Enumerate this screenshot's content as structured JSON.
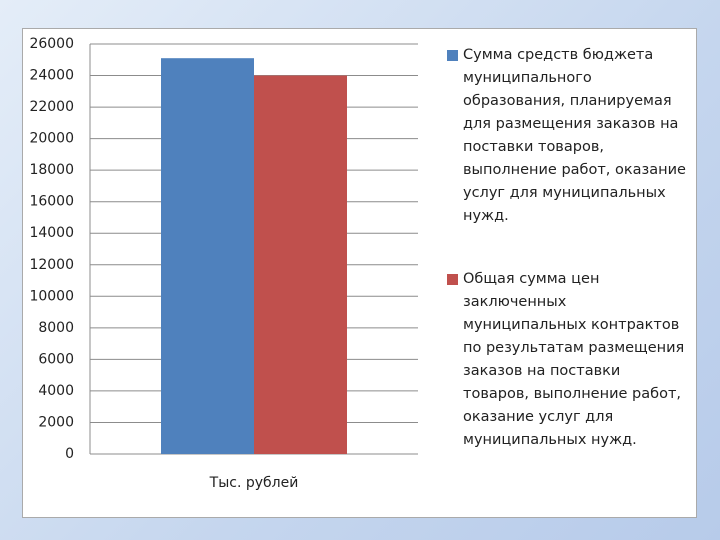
{
  "chart_data": {
    "type": "bar",
    "categories": [
      "Тыс. рублей"
    ],
    "series": [
      {
        "name": "Сумма средств бюджета муниципального образования, планируемая для размещения заказов на поставки товаров, выполнение работ, оказание услуг для муниципальных нужд.",
        "color": "#4f81bd",
        "values": [
          25100
        ]
      },
      {
        "name": "Общая сумма цен заключенных муниципальных контрактов по результатам размещения заказов на поставки товаров, выполнение работ, оказание услуг для муниципальных нужд.",
        "color": "#c0504d",
        "values": [
          24000
        ]
      }
    ],
    "ylim": [
      0,
      26000
    ],
    "yticks": [
      0,
      2000,
      4000,
      6000,
      8000,
      10000,
      12000,
      14000,
      16000,
      18000,
      20000,
      22000,
      24000,
      26000
    ],
    "grid": true,
    "legend": "right"
  }
}
